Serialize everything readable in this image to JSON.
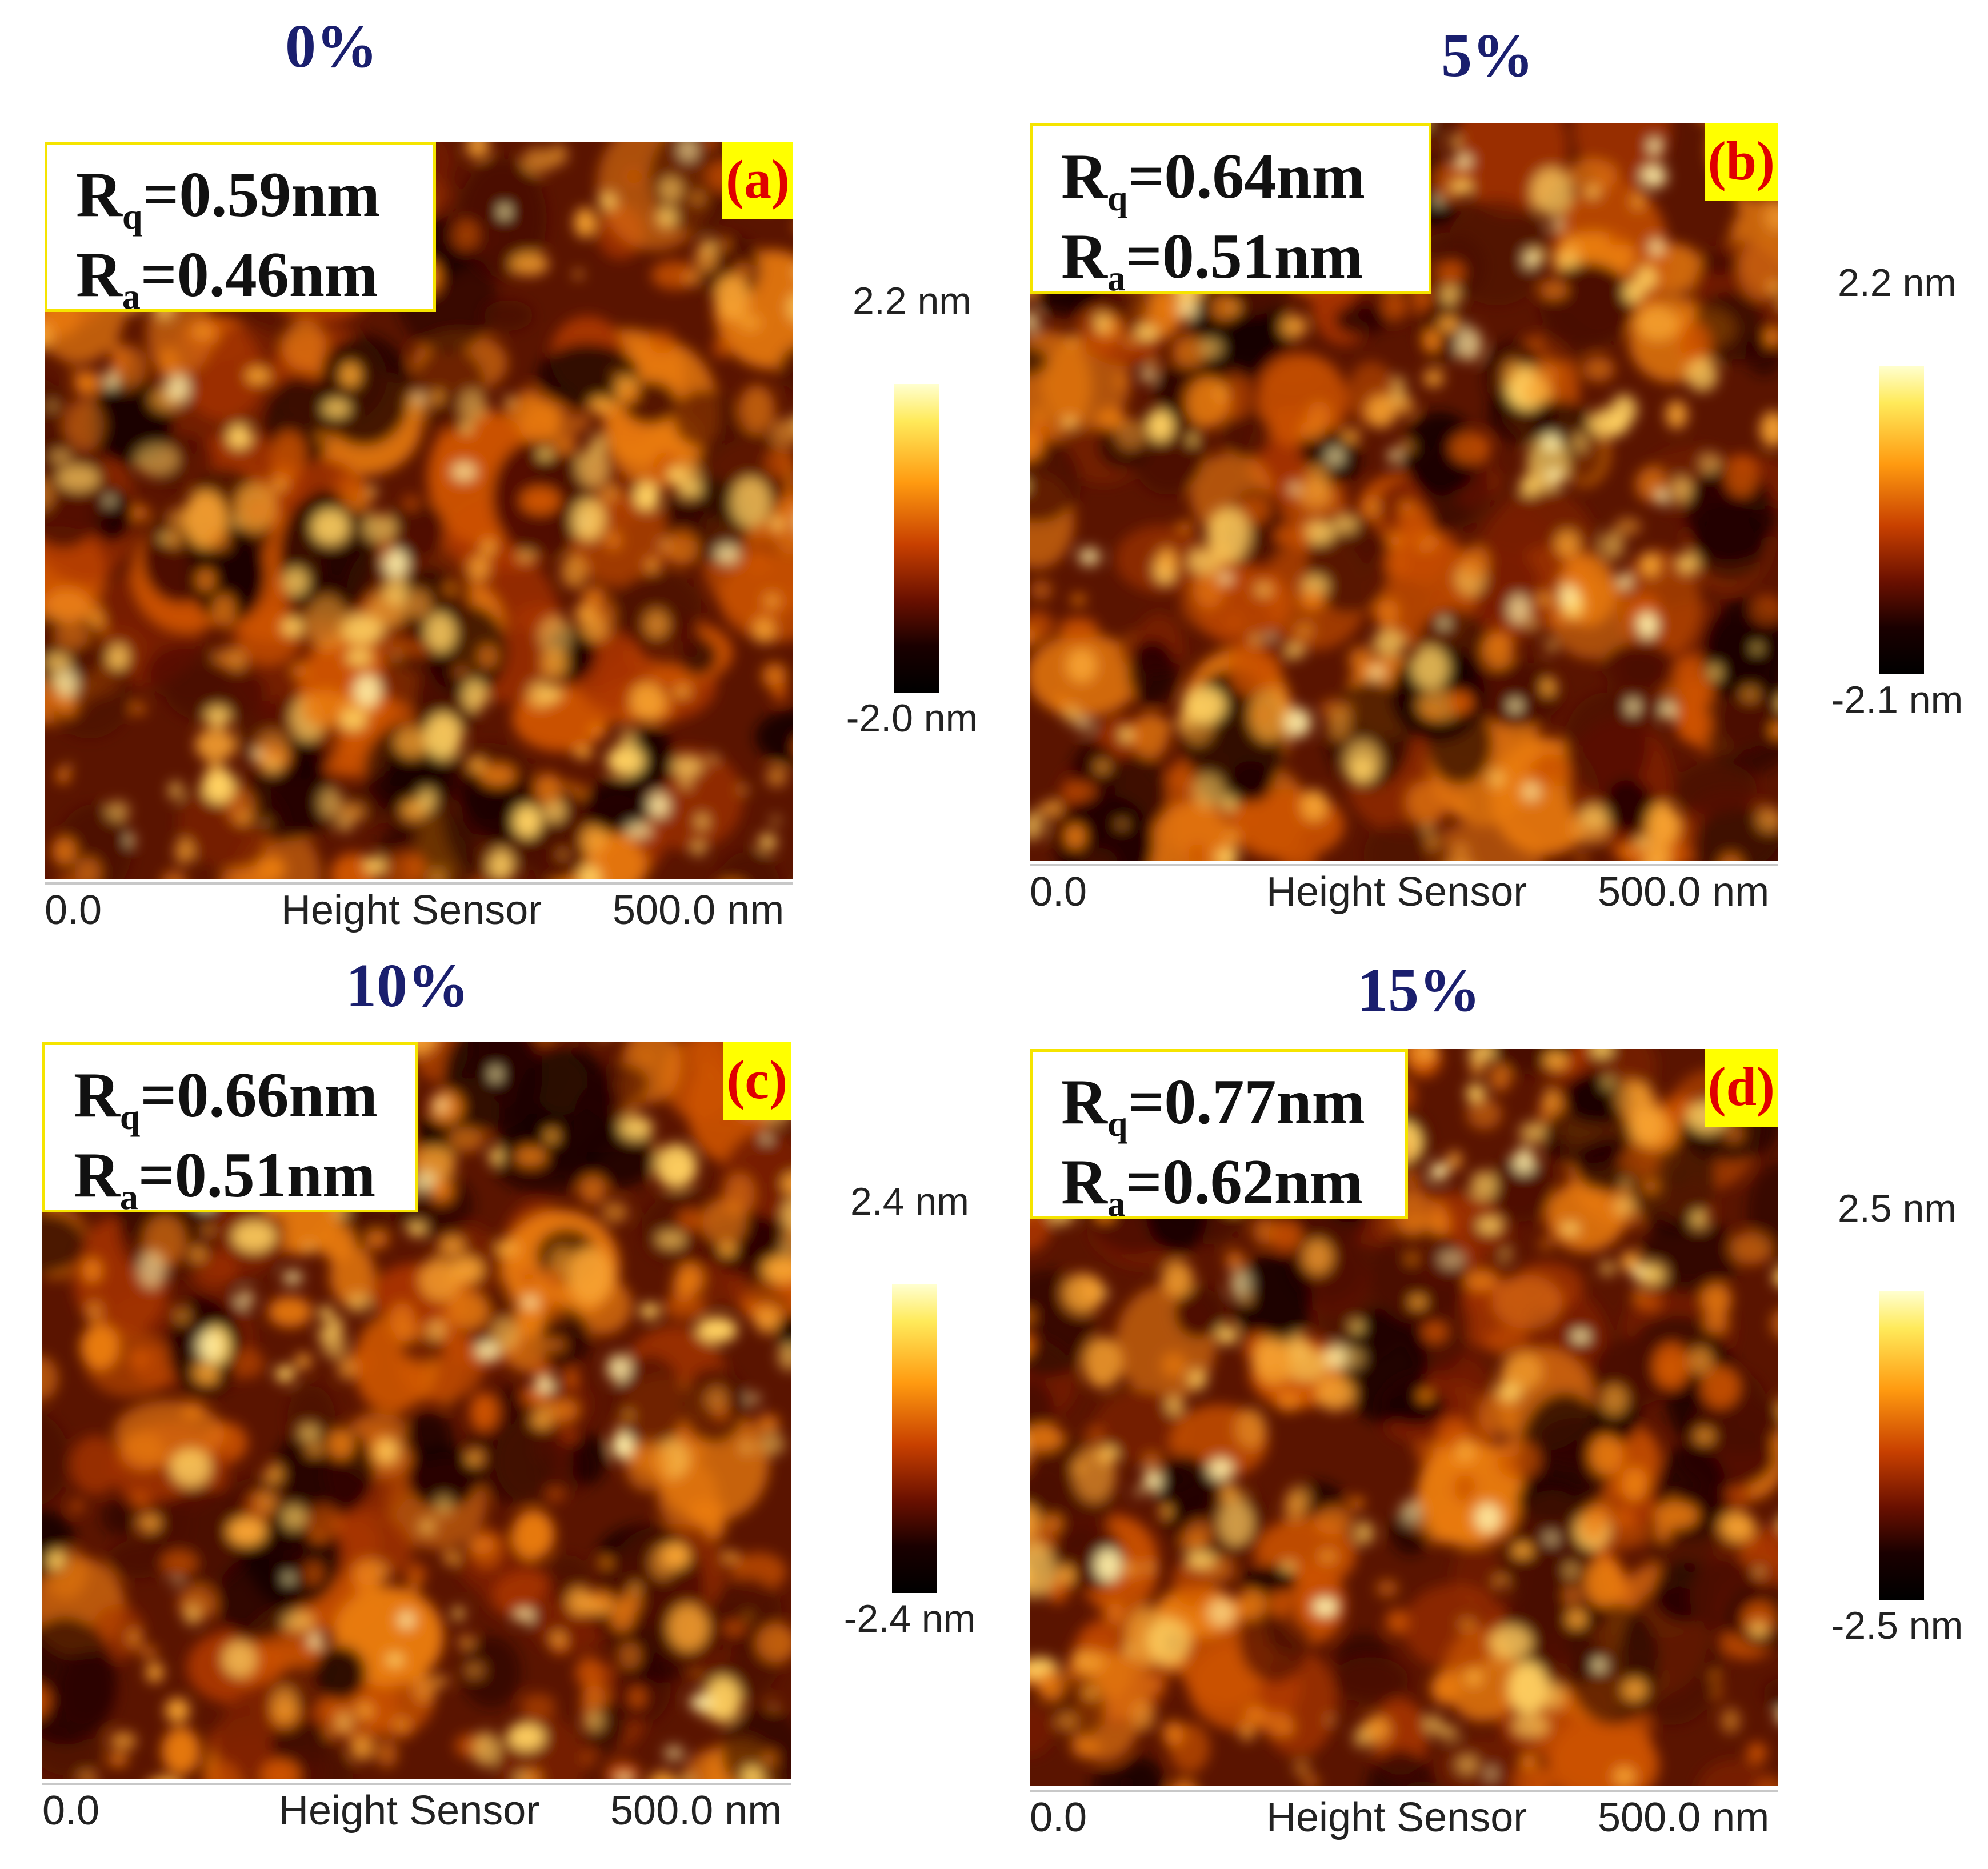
{
  "panels": [
    {
      "concentration": "0%",
      "label": "(a)",
      "rq": "0.59nm",
      "ra": "0.46nm",
      "scale_max": "2.2 nm",
      "scale_min": "-2.0 nm",
      "axis_start": "0.0",
      "axis_title": "Height Sensor",
      "axis_end": "500.0 nm"
    },
    {
      "concentration": "5%",
      "label": "(b)",
      "rq": "0.64nm",
      "ra": "0.51nm",
      "scale_max": "2.2 nm",
      "scale_min": "-2.1 nm",
      "axis_start": "0.0",
      "axis_title": "Height Sensor",
      "axis_end": "500.0 nm"
    },
    {
      "concentration": "10%",
      "label": "(c)",
      "rq": "0.66nm",
      "ra": "0.51nm",
      "scale_max": "2.4 nm",
      "scale_min": "-2.4 nm",
      "axis_start": "0.0",
      "axis_title": "Height Sensor",
      "axis_end": "500.0 nm"
    },
    {
      "concentration": "15%",
      "label": "(d)",
      "rq": "0.77nm",
      "ra": "0.62nm",
      "scale_max": "2.5 nm",
      "scale_min": "-2.5 nm",
      "axis_start": "0.0",
      "axis_title": "Height Sensor",
      "axis_end": "500.0 nm"
    }
  ],
  "symbols": {
    "rq_letter": "R",
    "rq_sub": "q",
    "ra_letter": "R",
    "ra_sub": "a",
    "equals": "="
  },
  "colors": {
    "title": "#1a1f6e",
    "label_text": "#e00000",
    "label_bg": "#ffff00",
    "box_border": "#f5e400",
    "afm_dark": "#000000",
    "afm_mid": "#c84000",
    "afm_bright": "#ffffd0"
  }
}
